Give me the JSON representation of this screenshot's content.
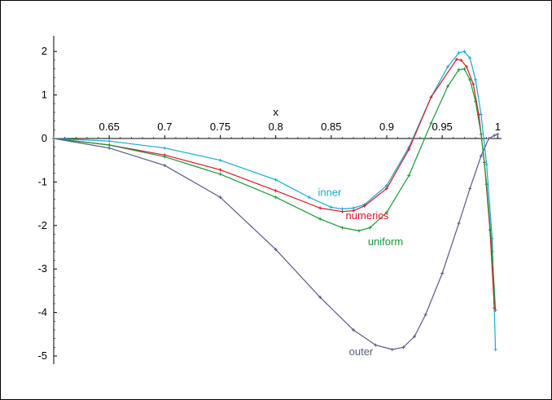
{
  "chart_data": {
    "type": "line",
    "title": "",
    "xlabel": "x",
    "ylabel": "",
    "xlim": [
      0.6,
      1.0
    ],
    "ylim": [
      -5.1,
      2.2
    ],
    "x_ticks": [
      0.65,
      0.7,
      0.75,
      0.8,
      0.85,
      0.9,
      0.95,
      1.0
    ],
    "x_tick_labels": [
      "0.65",
      "0.7",
      "0.75",
      "0.8",
      "0.85",
      "0.9",
      "0.95",
      "1"
    ],
    "y_ticks": [
      -5,
      -4,
      -3,
      -2,
      -1,
      0,
      1,
      2
    ],
    "y_tick_labels": [
      "-5",
      "-4",
      "-3",
      "-2",
      "-1",
      "0",
      "1",
      "2"
    ],
    "grid": false,
    "legend": "inline labels",
    "series": [
      {
        "name": "inner",
        "color": "#18a8d0",
        "x": [
          0.6,
          0.65,
          0.7,
          0.75,
          0.8,
          0.83,
          0.85,
          0.86,
          0.87,
          0.88,
          0.9,
          0.92,
          0.94,
          0.955,
          0.965,
          0.97,
          0.975,
          0.98,
          0.985,
          0.99,
          0.995,
          0.998
        ],
        "y": [
          0.0,
          -0.06,
          -0.22,
          -0.5,
          -0.95,
          -1.35,
          -1.58,
          -1.62,
          -1.6,
          -1.52,
          -1.08,
          -0.2,
          0.95,
          1.65,
          1.97,
          2.0,
          1.85,
          1.35,
          0.55,
          -0.6,
          -2.3,
          -4.85
        ]
      },
      {
        "name": "numerics",
        "color": "#d81828",
        "x": [
          0.6,
          0.65,
          0.7,
          0.75,
          0.8,
          0.84,
          0.86,
          0.87,
          0.88,
          0.9,
          0.92,
          0.94,
          0.963,
          0.967,
          0.972,
          0.978,
          0.983,
          0.988,
          0.993,
          0.997
        ],
        "y": [
          0.0,
          -0.15,
          -0.38,
          -0.72,
          -1.2,
          -1.6,
          -1.68,
          -1.66,
          -1.55,
          -1.15,
          -0.25,
          0.95,
          1.82,
          1.8,
          1.65,
          1.25,
          0.55,
          -0.55,
          -2.1,
          -3.9
        ]
      },
      {
        "name": "uniform",
        "color": "#189838",
        "x": [
          0.6,
          0.65,
          0.7,
          0.75,
          0.8,
          0.84,
          0.86,
          0.875,
          0.885,
          0.9,
          0.92,
          0.94,
          0.955,
          0.965,
          0.97,
          0.975,
          0.98,
          0.985,
          0.99,
          0.995,
          0.998
        ],
        "y": [
          0.0,
          -0.15,
          -0.42,
          -0.82,
          -1.35,
          -1.85,
          -2.05,
          -2.12,
          -2.05,
          -1.7,
          -0.85,
          0.35,
          1.2,
          1.58,
          1.6,
          1.35,
          0.85,
          0.1,
          -1.05,
          -2.6,
          -3.95
        ]
      },
      {
        "name": "outer",
        "color": "#5a5a88",
        "x": [
          0.6,
          0.65,
          0.7,
          0.75,
          0.8,
          0.84,
          0.87,
          0.89,
          0.905,
          0.915,
          0.925,
          0.935,
          0.95,
          0.965,
          0.975,
          0.985,
          0.992,
          0.997,
          1.0
        ],
        "y": [
          0.0,
          -0.22,
          -0.62,
          -1.35,
          -2.55,
          -3.65,
          -4.4,
          -4.75,
          -4.85,
          -4.8,
          -4.55,
          -4.05,
          -3.1,
          -1.95,
          -1.15,
          -0.4,
          0.0,
          0.07,
          0.1
        ]
      }
    ],
    "annotations": [
      {
        "text": "inner",
        "series": "inner",
        "x": 0.838,
        "y": -1.32
      },
      {
        "text": "numerics",
        "series": "numerics",
        "x": 0.863,
        "y": -1.85
      },
      {
        "text": "uniform",
        "series": "uniform",
        "x": 0.883,
        "y": -2.45
      },
      {
        "text": "outer",
        "series": "outer",
        "x": 0.866,
        "y": -4.98
      }
    ]
  }
}
